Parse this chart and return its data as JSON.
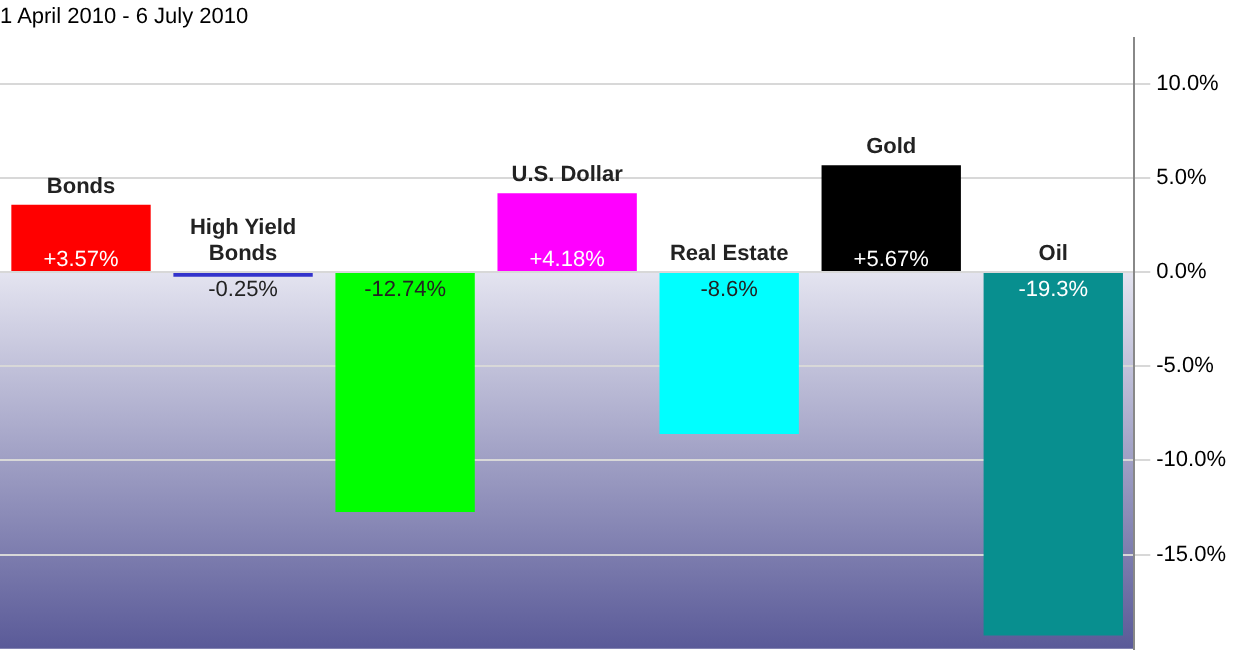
{
  "chart_data": {
    "type": "bar",
    "title": "1 April 2010 - 6 July 2010",
    "categories": [
      "Bonds",
      "High Yield Bonds",
      null,
      "U.S. Dollar",
      "Real Estate",
      "Gold",
      "Oil"
    ],
    "values": [
      3.57,
      -0.25,
      -12.74,
      4.18,
      -8.6,
      5.67,
      -19.3
    ],
    "colors": [
      "#ff0000",
      "#3333cc",
      "#00ff00",
      "#ff00ff",
      "#00ffff",
      "#000000",
      "#088f8f"
    ],
    "value_labels": [
      "+3.57%",
      "-0.25%",
      "-12.74%",
      "+4.18%",
      "-8.6%",
      "+5.67%",
      "-19.3%"
    ],
    "ylim": [
      -20,
      12.4
    ],
    "yticks": [
      {
        "value": -15,
        "label": "-15.0%"
      },
      {
        "value": -10,
        "label": "-10.0%"
      },
      {
        "value": -5,
        "label": "-5.0%"
      },
      {
        "value": 0,
        "label": "0.0%"
      },
      {
        "value": 5,
        "label": "5.0%"
      },
      {
        "value": 10,
        "label": "10.0%"
      }
    ],
    "bands": [
      {
        "axis": "y",
        "from": -20,
        "to": 0,
        "color": "#5a5a98"
      }
    ],
    "grid": "y",
    "legend": false
  }
}
